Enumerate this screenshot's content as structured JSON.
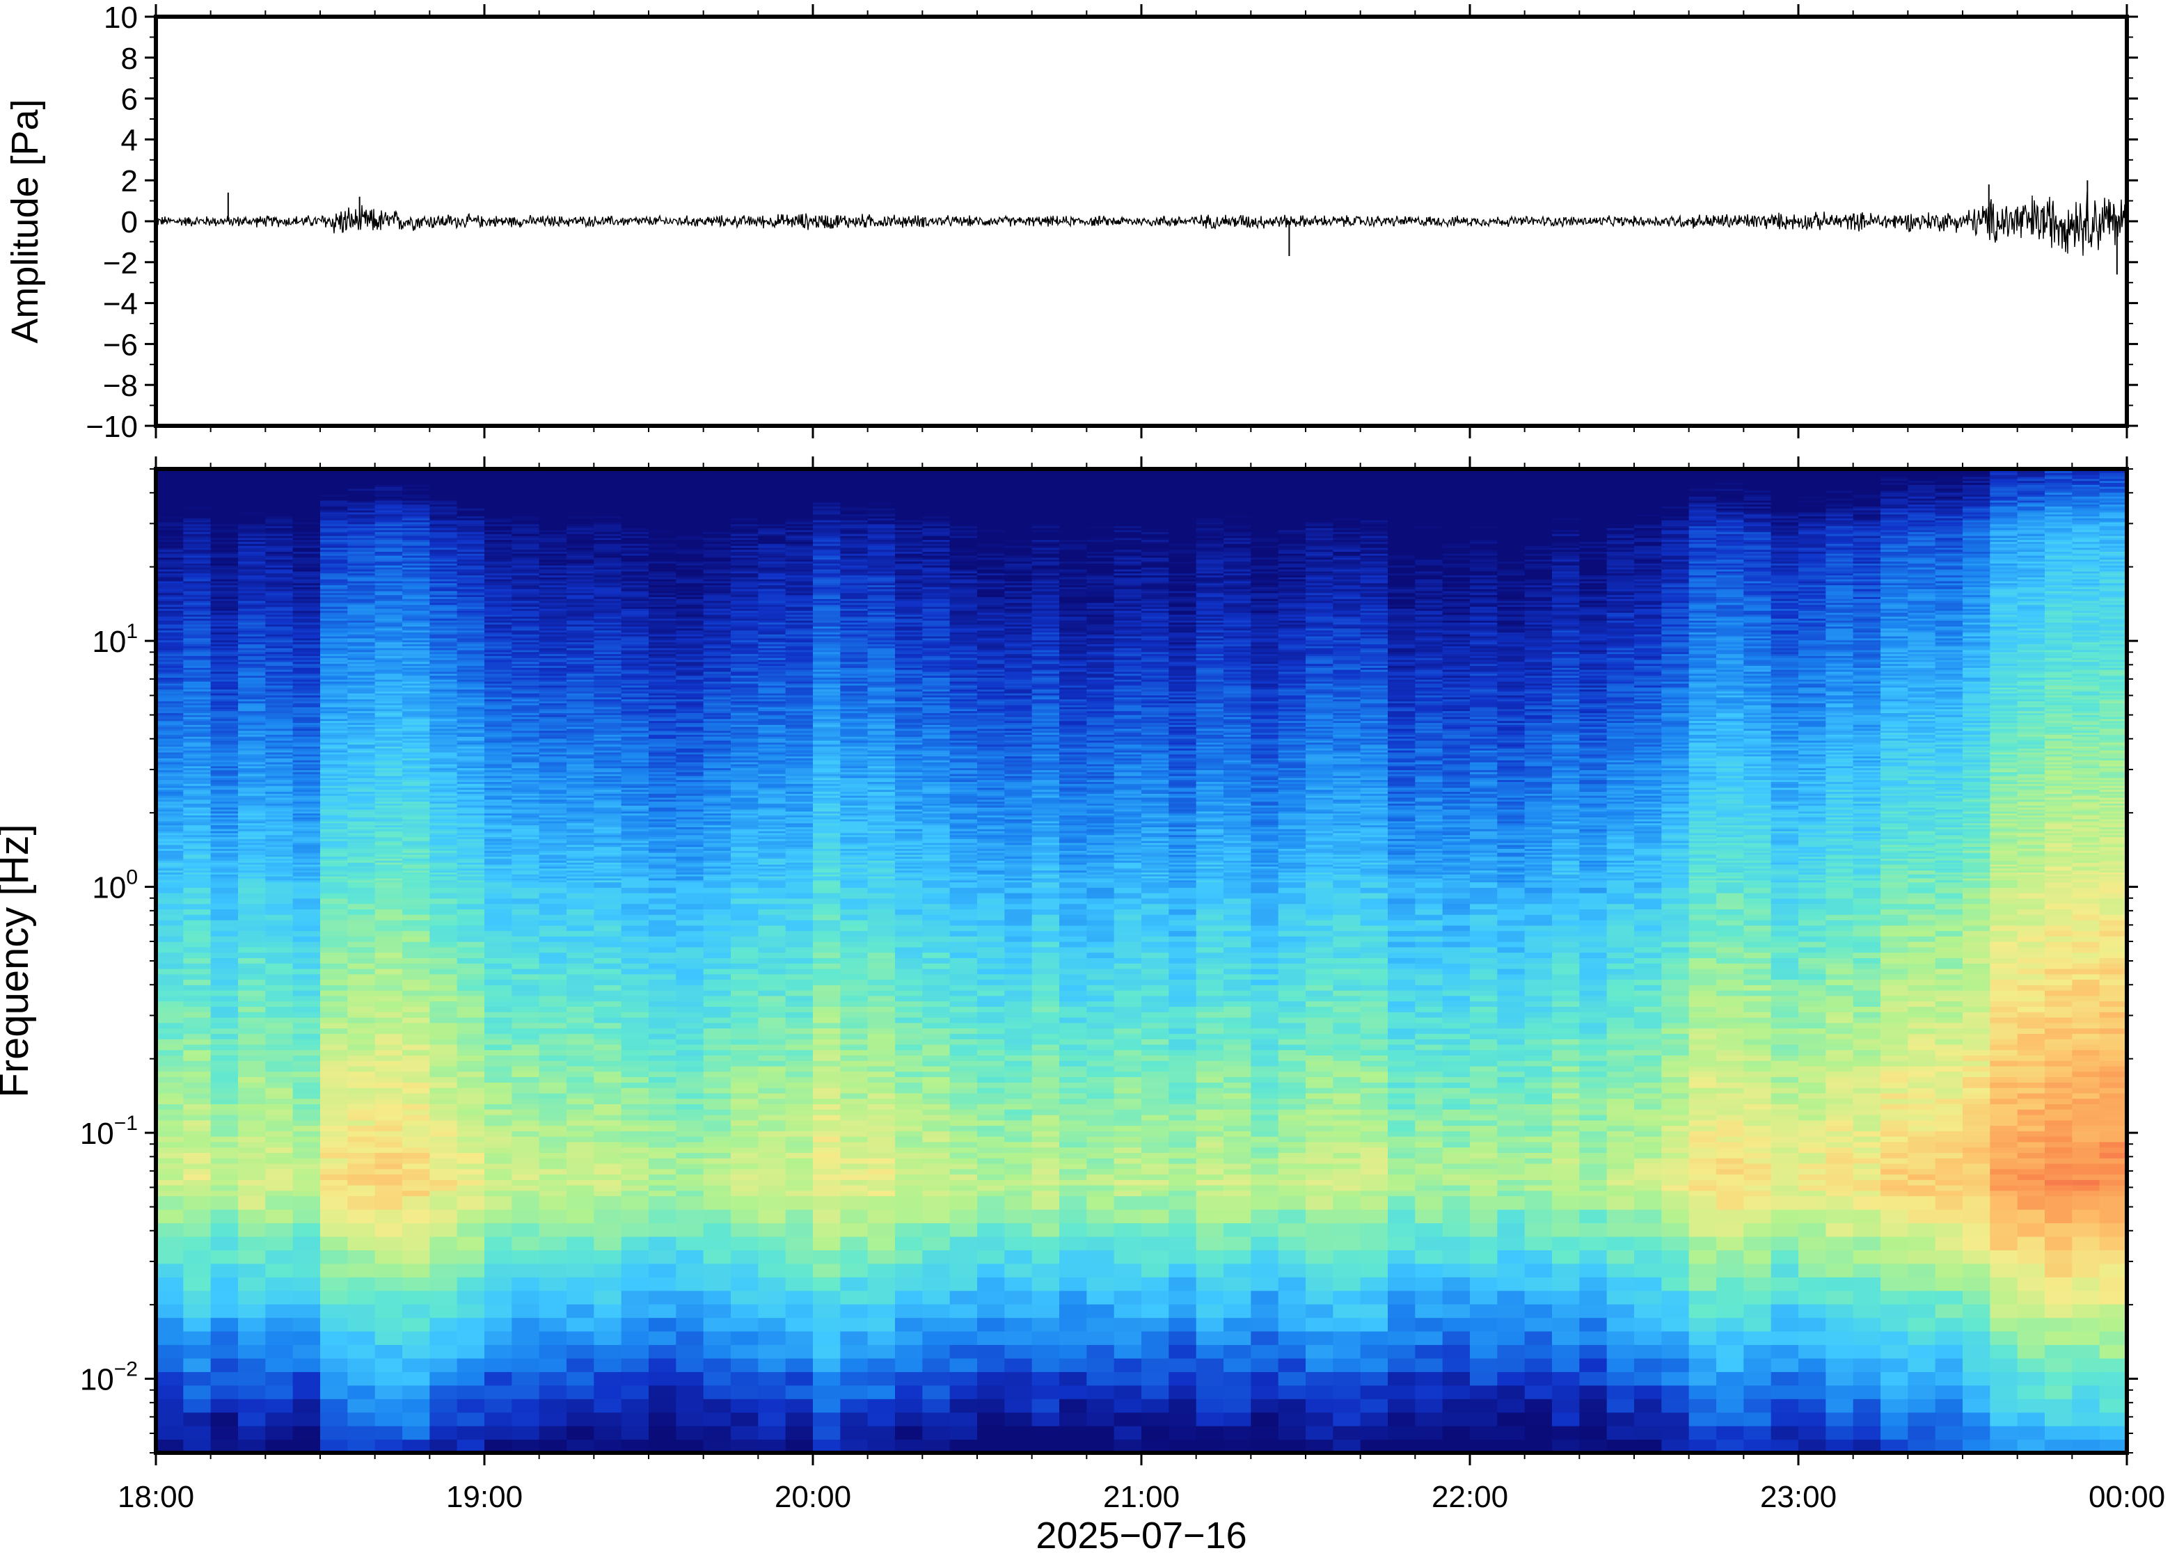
{
  "chart_data": [
    {
      "type": "line",
      "panel": "waveform",
      "ylabel": "Amplitude [Pa]",
      "ylim": [
        -10,
        10
      ],
      "yticks": [
        10,
        8,
        6,
        4,
        2,
        0,
        -2,
        -4,
        -6,
        -8,
        -10
      ],
      "ytick_labels": [
        "10",
        "8",
        "6",
        "4",
        "2",
        "0",
        "−2",
        "−4",
        "−6",
        "−8",
        "−10"
      ],
      "xlim": [
        "2025-07-16 18:00",
        "2025-07-17 00:00"
      ],
      "line_color": "#000000",
      "envelope_hours": [
        18.0,
        18.5,
        18.55,
        18.65,
        18.8,
        19.0,
        19.5,
        19.8,
        20.0,
        20.2,
        20.5,
        21.0,
        21.3,
        21.5,
        22.0,
        22.5,
        22.75,
        23.0,
        23.3,
        23.5,
        23.6,
        23.75,
        23.9,
        24.0
      ],
      "envelope_pa": [
        0.3,
        0.35,
        0.9,
        0.8,
        0.5,
        0.35,
        0.3,
        0.35,
        0.5,
        0.4,
        0.3,
        0.3,
        0.45,
        0.35,
        0.3,
        0.3,
        0.45,
        0.5,
        0.55,
        0.6,
        1.4,
        1.6,
        1.9,
        1.5
      ],
      "spikes": [
        {
          "hour": 18.22,
          "pa": 1.4
        },
        {
          "hour": 18.62,
          "pa": 1.2
        },
        {
          "hour": 21.45,
          "pa": -1.7
        },
        {
          "hour": 23.58,
          "pa": 1.8
        },
        {
          "hour": 23.88,
          "pa": 2.0
        },
        {
          "hour": 23.97,
          "pa": -2.6
        }
      ]
    },
    {
      "type": "heatmap",
      "panel": "spectrogram",
      "ylabel": "Frequency [Hz]",
      "y_scale": "log",
      "ylim": [
        0.005,
        50
      ],
      "yticks": [
        0.01,
        0.1,
        1,
        10
      ],
      "ytick_labels": [
        {
          "base": "10",
          "exp": "−2"
        },
        {
          "base": "10",
          "exp": "−1"
        },
        {
          "base": "10",
          "exp": "0"
        },
        {
          "base": "10",
          "exp": "1"
        }
      ],
      "xlim": [
        "2025-07-16 18:00",
        "2025-07-17 00:00"
      ],
      "colormap": "jet-like",
      "colorstops": [
        "#0a0c7a",
        "#1033c8",
        "#1b84f0",
        "#3fc7ff",
        "#62e8d0",
        "#b4f28e",
        "#f4ec8a",
        "#fdc06a",
        "#fa8d4e",
        "#ee4c46"
      ],
      "level_hours": [
        18.0,
        18.5,
        18.55,
        19.0,
        19.5,
        20.0,
        20.5,
        21.0,
        21.5,
        22.0,
        22.5,
        22.75,
        23.0,
        23.5,
        23.75,
        24.0
      ],
      "relative_level": [
        0.5,
        0.45,
        0.7,
        0.55,
        0.42,
        0.55,
        0.45,
        0.4,
        0.45,
        0.4,
        0.42,
        0.62,
        0.6,
        0.72,
        0.95,
        0.9
      ]
    }
  ],
  "xaxis": {
    "tick_labels": [
      "18:00",
      "19:00",
      "20:00",
      "21:00",
      "22:00",
      "23:00",
      "00:00"
    ],
    "label": "2025−07−16"
  }
}
